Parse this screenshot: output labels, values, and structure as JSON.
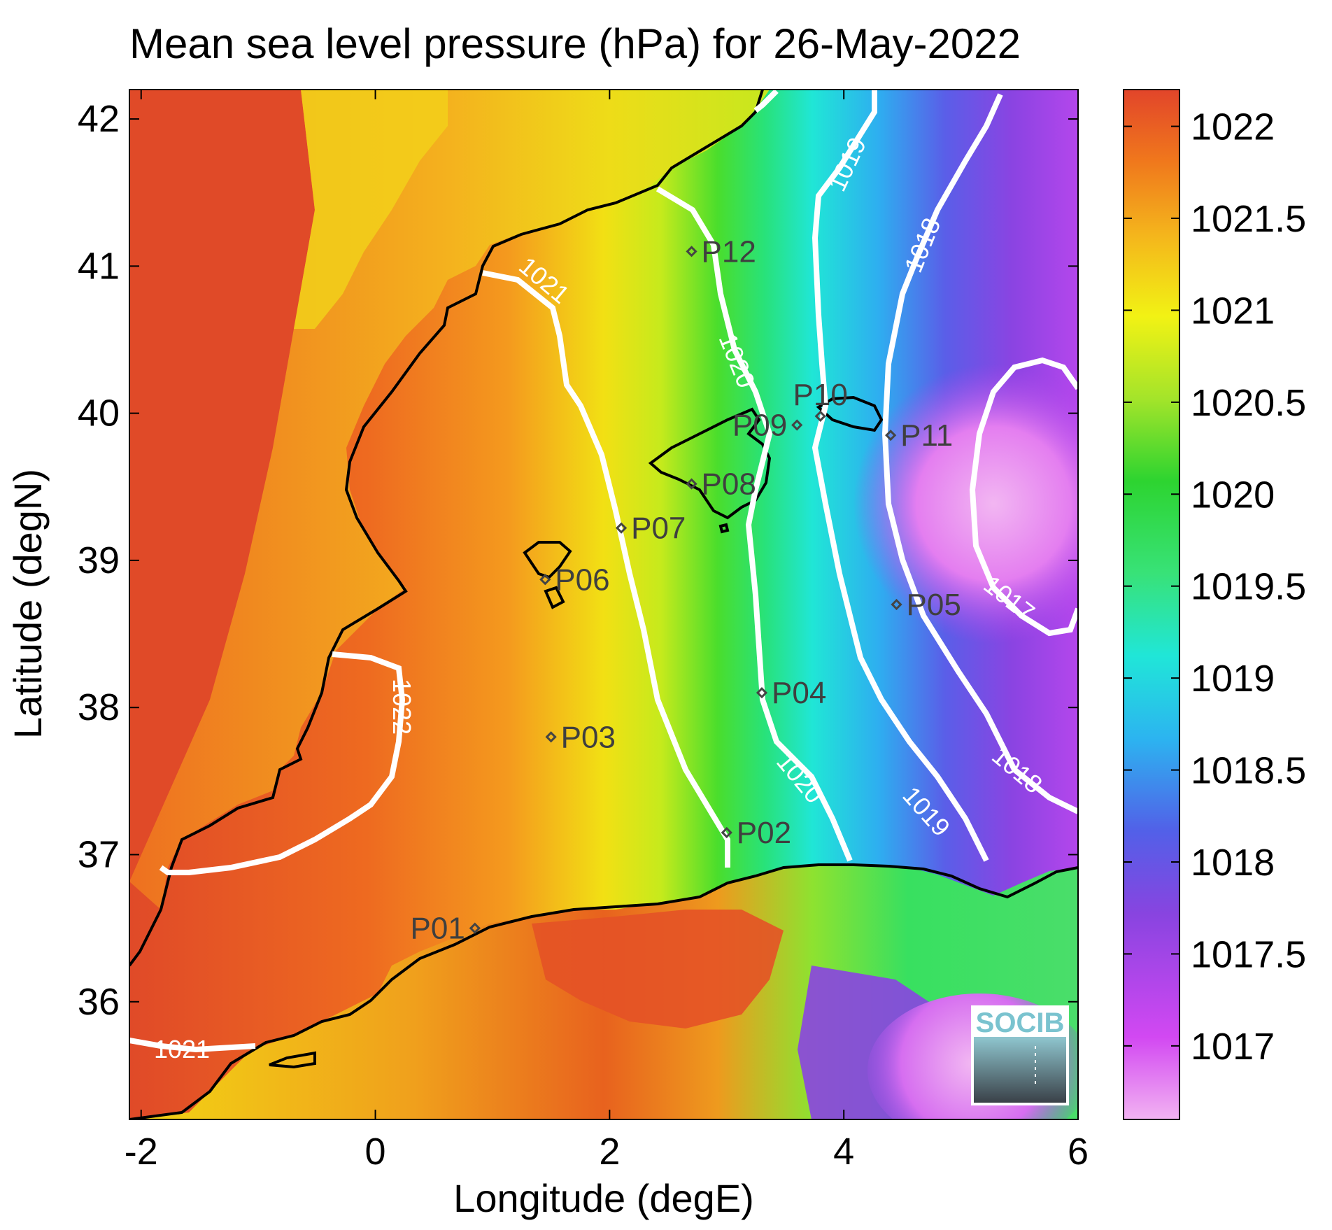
{
  "title": "Mean sea level pressure (hPa) for 26-May-2022",
  "xlabel": "Longitude (degE)",
  "ylabel": "Latitude (degN)",
  "logo": "SOCIB",
  "map": {
    "lon_range": [
      -2.1,
      6.0
    ],
    "lat_range": [
      35.2,
      42.2
    ],
    "x_ticks": [
      "-2",
      "0",
      "2",
      "4",
      "6"
    ],
    "x_tick_values": [
      -2,
      0,
      2,
      4,
      6
    ],
    "y_ticks": [
      "36",
      "37",
      "38",
      "39",
      "40",
      "41",
      "42"
    ],
    "y_tick_values": [
      36,
      37,
      38,
      39,
      40,
      41,
      42
    ]
  },
  "colorbar": {
    "range": [
      1016.6,
      1022.2
    ],
    "ticks": [
      "1017",
      "1017.5",
      "1018",
      "1018.5",
      "1019",
      "1019.5",
      "1020",
      "1020.5",
      "1021",
      "1021.5",
      "1022"
    ],
    "tick_values": [
      1017,
      1017.5,
      1018,
      1018.5,
      1019,
      1019.5,
      1020,
      1020.5,
      1021,
      1021.5,
      1022
    ],
    "colors": [
      "#f2b3f2",
      "#d248f2",
      "#8844e0",
      "#5260e8",
      "#2cb4f0",
      "#20e6d8",
      "#38e278",
      "#2dd430",
      "#a4e42a",
      "#f2f214",
      "#f4b41c",
      "#f0781c",
      "#e2452a"
    ]
  },
  "stations": [
    {
      "name": "P01",
      "lon": 0.85,
      "lat": 36.5,
      "label_side": "left"
    },
    {
      "name": "P02",
      "lon": 3.0,
      "lat": 37.15,
      "label_side": "right"
    },
    {
      "name": "P03",
      "lon": 1.5,
      "lat": 37.8,
      "label_side": "right"
    },
    {
      "name": "P04",
      "lon": 3.3,
      "lat": 38.1,
      "label_side": "right"
    },
    {
      "name": "P05",
      "lon": 4.45,
      "lat": 38.7,
      "label_side": "right"
    },
    {
      "name": "P06",
      "lon": 1.45,
      "lat": 38.87,
      "label_side": "right"
    },
    {
      "name": "P07",
      "lon": 2.1,
      "lat": 39.22,
      "label_side": "right"
    },
    {
      "name": "P08",
      "lon": 2.7,
      "lat": 39.52,
      "label_side": "right"
    },
    {
      "name": "P09",
      "lon": 3.6,
      "lat": 39.92,
      "label_side": "left"
    },
    {
      "name": "P10",
      "lon": 3.8,
      "lat": 39.98,
      "label_side": "above"
    },
    {
      "name": "P11",
      "lon": 4.4,
      "lat": 39.85,
      "label_side": "right"
    },
    {
      "name": "P12",
      "lon": 2.7,
      "lat": 41.1,
      "label_side": "right"
    }
  ],
  "contours": [
    {
      "level": "1022",
      "label": "1022"
    },
    {
      "level": "1021",
      "label": "1021"
    },
    {
      "level": "1020",
      "label": "1020"
    },
    {
      "level": "1019",
      "label": "1019"
    },
    {
      "level": "1018",
      "label": "1018"
    },
    {
      "level": "1017",
      "label": "1017"
    }
  ]
}
